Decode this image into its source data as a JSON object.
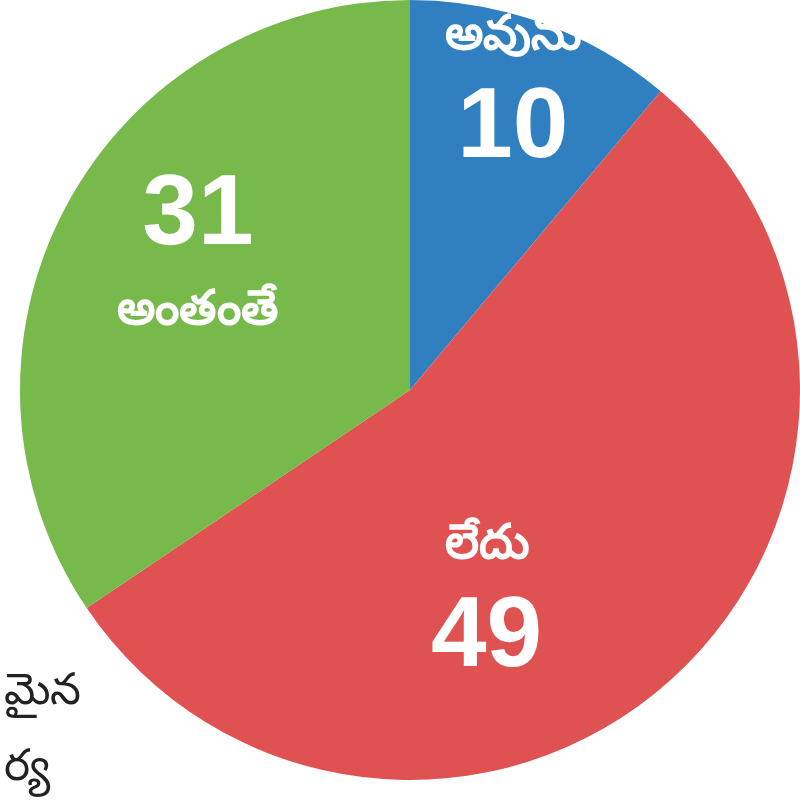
{
  "chart_data": {
    "type": "pie",
    "categories": [
      "అవును",
      "లేదు",
      "అంతంతే"
    ],
    "values": [
      10,
      49,
      31
    ],
    "colors": [
      "#2f7fc1",
      "#e05252",
      "#77b94a"
    ],
    "data_labels": true,
    "annotations": [
      "మైన",
      "ర్య"
    ]
  }
}
